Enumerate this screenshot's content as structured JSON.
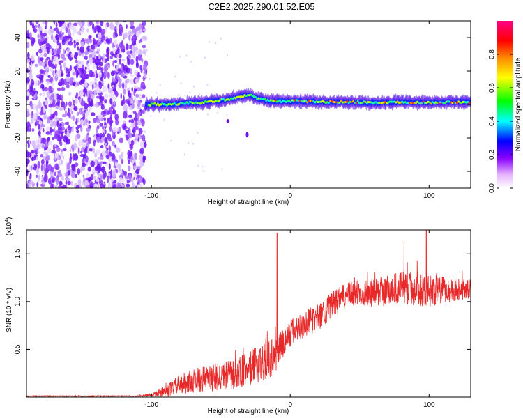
{
  "title": "C2E2.2025.290.01.52.E05",
  "chart_data": [
    {
      "type": "heatmap",
      "name": "spectrogram",
      "xlabel": "Height of straight line (km)",
      "ylabel": "Frequency (Hz)",
      "xlim": [
        -190,
        130
      ],
      "ylim": [
        -50,
        50
      ],
      "xticks": [
        -100,
        0,
        100
      ],
      "xtick_labels": [
        "-100",
        "0",
        "100"
      ],
      "yticks": [
        40,
        20,
        0,
        -20,
        -40
      ],
      "ytick_labels": [
        "40",
        "20",
        "0",
        "-20",
        "-40"
      ],
      "colorbar": {
        "label": "Normalized spectral amplitude",
        "ticks": [
          0.0,
          0.2,
          0.4,
          0.6,
          0.8
        ],
        "tick_labels": [
          "0.0",
          "0.2",
          "0.4",
          "0.6",
          "0.8"
        ],
        "range": [
          0,
          1
        ],
        "colormap": [
          "#ffffff",
          "#8800ff",
          "#0000ff",
          "#00ffff",
          "#00ff00",
          "#ffff00",
          "#ff8800",
          "#ff0000",
          "#ff0088"
        ]
      },
      "noise_region_km": [
        -190,
        -104
      ],
      "signal_track": {
        "x_km": [
          -104,
          -95,
          -85,
          -75,
          -65,
          -55,
          -45,
          -35,
          -30,
          -25,
          -15,
          -5,
          5,
          20,
          40,
          60,
          80,
          100,
          120,
          130
        ],
        "freq_hz": [
          0,
          0,
          0,
          1,
          1,
          2,
          3,
          5,
          6,
          4,
          2,
          2,
          2,
          1.5,
          1.5,
          1,
          1.5,
          1,
          1.5,
          1.5
        ]
      },
      "isolated_blob": {
        "x_km": -31,
        "freq_hz": -18
      }
    },
    {
      "type": "line",
      "name": "snr",
      "xlabel": "Height of straight line (km)",
      "ylabel": "SNR (10 * v/v)",
      "y_multiplier": "(x10^4)",
      "xlim": [
        -190,
        130
      ],
      "ylim": [
        0,
        1.75
      ],
      "xticks": [
        -100,
        0,
        100
      ],
      "xtick_labels": [
        "-100",
        "0",
        "100"
      ],
      "yticks": [
        1.5,
        1.0,
        0.5
      ],
      "ytick_labels": [
        "1.5",
        "1.0",
        "0.5"
      ],
      "color": "#e8292a",
      "envelope": {
        "x_km": [
          -190,
          -110,
          -100,
          -90,
          -80,
          -70,
          -60,
          -50,
          -40,
          -30,
          -20,
          -12,
          -10,
          -5,
          0,
          10,
          20,
          30,
          40,
          50,
          60,
          70,
          80,
          90,
          100,
          110,
          120,
          130
        ],
        "y_base": [
          0.01,
          0.01,
          0.02,
          0.05,
          0.12,
          0.16,
          0.18,
          0.2,
          0.22,
          0.28,
          0.35,
          0.4,
          0.45,
          0.55,
          0.65,
          0.75,
          0.82,
          0.95,
          1.05,
          1.08,
          1.08,
          1.1,
          1.12,
          1.12,
          1.1,
          1.1,
          1.12,
          1.12
        ],
        "noise_amp": [
          0.005,
          0.005,
          0.02,
          0.06,
          0.1,
          0.13,
          0.14,
          0.15,
          0.16,
          0.18,
          0.2,
          0.2,
          0.2,
          0.17,
          0.15,
          0.14,
          0.14,
          0.14,
          0.13,
          0.14,
          0.15,
          0.17,
          0.18,
          0.18,
          0.17,
          0.15,
          0.12,
          0.1
        ]
      },
      "peaks": [
        {
          "x_km": -9.5,
          "y": 1.72
        },
        {
          "x_km": 82,
          "y": 1.62
        },
        {
          "x_km": 98,
          "y": 1.75
        }
      ]
    }
  ]
}
